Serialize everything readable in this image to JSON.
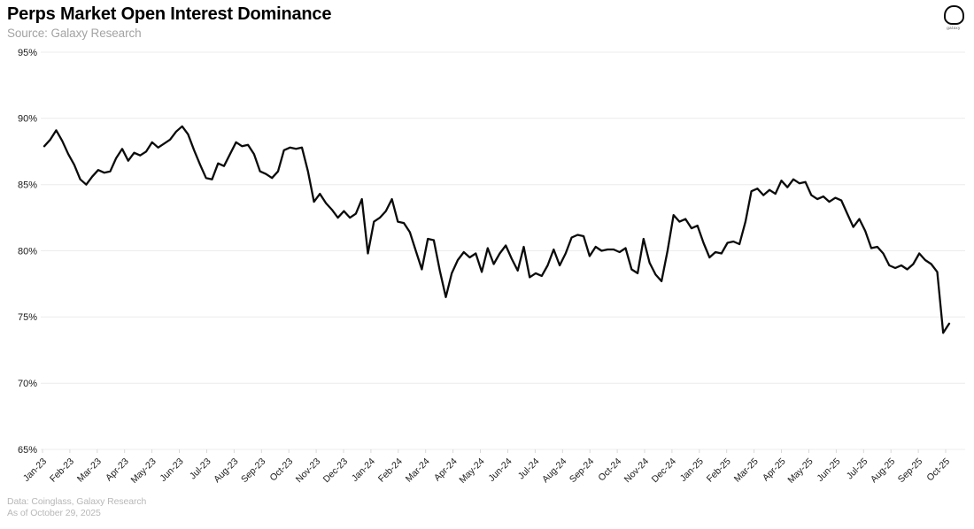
{
  "header": {
    "title": "Perps Market Open Interest Dominance",
    "subtitle": "Source: Galaxy Research",
    "logo_label": "galaxy"
  },
  "footer": {
    "line1": "Data: Coinglass, Galaxy Research",
    "line2": "As of October 29, 2025"
  },
  "colors": {
    "background": "#ffffff",
    "line": "#0b0b0b",
    "grid": "#ececec",
    "tick_mark": "#d9d9d9",
    "y_label": "#1a1a1a",
    "x_label": "#1a1a1a"
  },
  "chart_data": {
    "type": "line",
    "title": "Perps Market Open Interest Dominance",
    "unit": "%",
    "frequency": "weekly",
    "grid": "horizontal",
    "legend": "none",
    "ylim": [
      65,
      95
    ],
    "ytick_values": [
      95,
      90,
      85,
      80,
      75,
      70,
      65
    ],
    "yticks": [
      "95%",
      "90%",
      "85%",
      "80%",
      "75%",
      "70%",
      "65%"
    ],
    "xticks": [
      "Jan-23",
      "Feb-23",
      "Mar-23",
      "Apr-23",
      "May-23",
      "Jun-23",
      "Jul-23",
      "Aug-23",
      "Sep-23",
      "Oct-23",
      "Nov-23",
      "Dec-23",
      "Jan-24",
      "Feb-24",
      "Mar-24",
      "Apr-24",
      "May-24",
      "Jun-24",
      "Jul-24",
      "Aug-24",
      "Sep-24",
      "Oct-24",
      "Nov-24",
      "Dec-24",
      "Jan-25",
      "Feb-25",
      "Mar-25",
      "Apr-25",
      "May-25",
      "Jun-25",
      "Jul-25",
      "Aug-25",
      "Sep-25",
      "Oct-25"
    ],
    "series": [
      {
        "name": "Perps Market Open Interest Dominance",
        "values": [
          87.9,
          88.4,
          89.1,
          88.3,
          87.3,
          86.5,
          85.4,
          85.0,
          85.6,
          86.1,
          85.9,
          86.0,
          87.0,
          87.7,
          86.8,
          87.4,
          87.2,
          87.5,
          88.2,
          87.8,
          88.1,
          88.4,
          89.0,
          89.4,
          88.8,
          87.6,
          86.5,
          85.5,
          85.4,
          86.6,
          86.4,
          87.3,
          88.2,
          87.9,
          88.0,
          87.3,
          86.0,
          85.8,
          85.5,
          86.0,
          87.6,
          87.8,
          87.7,
          87.8,
          86.0,
          83.7,
          84.3,
          83.6,
          83.1,
          82.5,
          83.0,
          82.5,
          82.8,
          83.9,
          79.8,
          82.2,
          82.5,
          83.0,
          83.9,
          82.2,
          82.1,
          81.4,
          80.0,
          78.6,
          80.9,
          80.8,
          78.5,
          76.5,
          78.3,
          79.3,
          79.9,
          79.5,
          79.8,
          78.4,
          80.2,
          79.0,
          79.8,
          80.4,
          79.4,
          78.5,
          80.3,
          78.0,
          78.3,
          78.1,
          78.9,
          80.1,
          78.9,
          79.8,
          81.0,
          81.2,
          81.1,
          79.6,
          80.3,
          80.0,
          80.1,
          80.1,
          79.9,
          80.2,
          78.6,
          78.3,
          80.9,
          79.1,
          78.2,
          77.7,
          80.0,
          82.7,
          82.2,
          82.4,
          81.7,
          81.9,
          80.6,
          79.5,
          79.9,
          79.8,
          80.6,
          80.7,
          80.5,
          82.2,
          84.5,
          84.7,
          84.2,
          84.6,
          84.3,
          85.3,
          84.8,
          85.4,
          85.1,
          85.2,
          84.2,
          83.9,
          84.1,
          83.7,
          84.0,
          83.8,
          82.8,
          81.8,
          82.4,
          81.5,
          80.2,
          80.3,
          79.8,
          78.9,
          78.7,
          78.9,
          78.6,
          79.0,
          79.8,
          79.3,
          79.0,
          78.4,
          73.8,
          74.5
        ]
      }
    ]
  }
}
